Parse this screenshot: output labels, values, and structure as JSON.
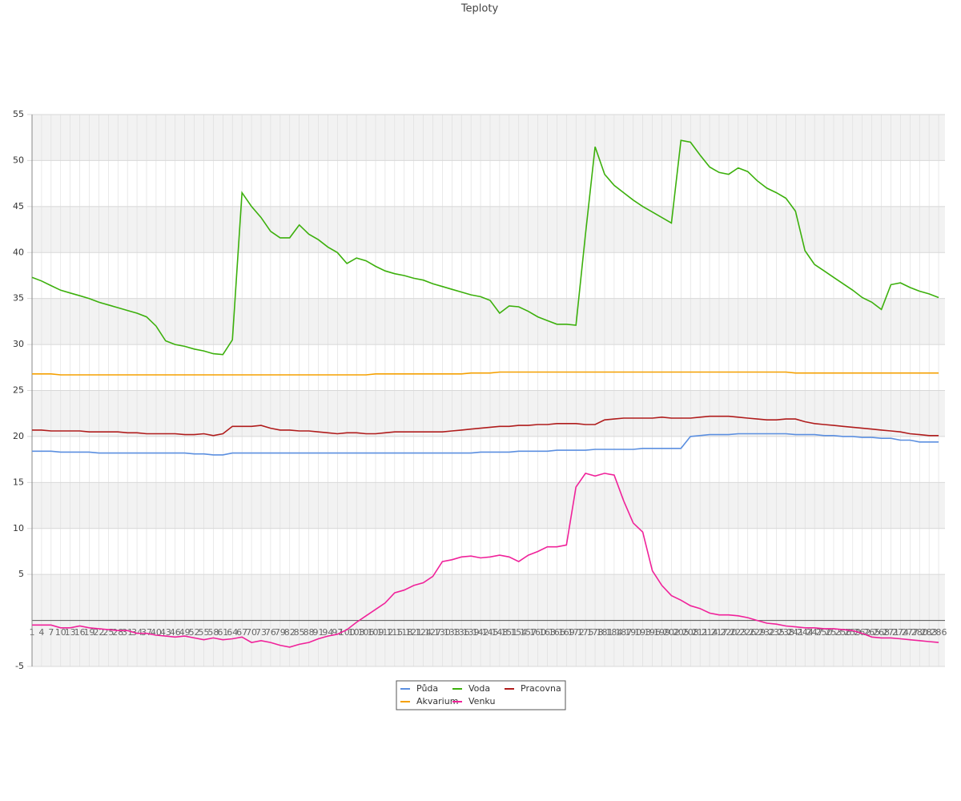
{
  "chart_data": {
    "type": "line",
    "title": "Teploty",
    "x": [
      1,
      4,
      7,
      10,
      13,
      16,
      19,
      22,
      25,
      28,
      31,
      34,
      37,
      40,
      43,
      46,
      49,
      52,
      55,
      58,
      61,
      64,
      67,
      70,
      73,
      76,
      79,
      82,
      85,
      88,
      91,
      94,
      97,
      100,
      103,
      106,
      109,
      112,
      115,
      118,
      121,
      124,
      127,
      130,
      133,
      136,
      139,
      142,
      145,
      148,
      151,
      154,
      157,
      160,
      163,
      166,
      169,
      172,
      175,
      178,
      181,
      184,
      187,
      190,
      193,
      196,
      199,
      202,
      205,
      208,
      211,
      214,
      217,
      220,
      223,
      226,
      229,
      232,
      235,
      238,
      241,
      244,
      247,
      250,
      253,
      256,
      259,
      262,
      265,
      268,
      271,
      274,
      277,
      280,
      283,
      286
    ],
    "xlim": [
      1,
      288
    ],
    "ylim": [
      -5,
      55
    ],
    "yticks": [
      -5,
      5,
      10,
      15,
      20,
      25,
      30,
      35,
      40,
      45,
      50,
      55
    ],
    "grid": true,
    "series": [
      {
        "name": "Půda",
        "color": "#5b8fe0",
        "values": [
          18.4,
          18.4,
          18.4,
          18.3,
          18.3,
          18.3,
          18.3,
          18.2,
          18.2,
          18.2,
          18.2,
          18.2,
          18.2,
          18.2,
          18.2,
          18.2,
          18.2,
          18.1,
          18.1,
          18.0,
          18.0,
          18.2,
          18.2,
          18.2,
          18.2,
          18.2,
          18.2,
          18.2,
          18.2,
          18.2,
          18.2,
          18.2,
          18.2,
          18.2,
          18.2,
          18.2,
          18.2,
          18.2,
          18.2,
          18.2,
          18.2,
          18.2,
          18.2,
          18.2,
          18.2,
          18.2,
          18.2,
          18.3,
          18.3,
          18.3,
          18.3,
          18.4,
          18.4,
          18.4,
          18.4,
          18.5,
          18.5,
          18.5,
          18.5,
          18.6,
          18.6,
          18.6,
          18.6,
          18.6,
          18.7,
          18.7,
          18.7,
          18.7,
          18.7,
          20.0,
          20.1,
          20.2,
          20.2,
          20.2,
          20.3,
          20.3,
          20.3,
          20.3,
          20.3,
          20.3,
          20.2,
          20.2,
          20.2,
          20.1,
          20.1,
          20.0,
          20.0,
          19.9,
          19.9,
          19.8,
          19.8,
          19.6,
          19.6,
          19.4,
          19.4,
          19.4
        ]
      },
      {
        "name": "Voda",
        "color": "#3cb00c",
        "values": [
          37.3,
          36.9,
          36.4,
          35.9,
          35.6,
          35.3,
          35.0,
          34.6,
          34.3,
          34.0,
          33.7,
          33.4,
          33.0,
          32.0,
          30.4,
          30.0,
          29.8,
          29.5,
          29.3,
          29.0,
          28.9,
          30.5,
          46.5,
          45.0,
          43.8,
          42.3,
          41.6,
          41.6,
          43.0,
          42.0,
          41.4,
          40.6,
          40.0,
          38.8,
          39.4,
          39.1,
          38.5,
          38.0,
          37.7,
          37.5,
          37.2,
          37.0,
          36.6,
          36.3,
          36.0,
          35.7,
          35.4,
          35.2,
          34.8,
          33.4,
          34.2,
          34.1,
          33.6,
          33.0,
          32.6,
          32.2,
          32.2,
          32.1,
          42,
          51.5,
          48.5,
          47.3,
          46.5,
          45.7,
          45.0,
          44.4,
          43.8,
          43.2,
          52.2,
          52.0,
          50.6,
          49.3,
          48.7,
          48.5,
          49.2,
          48.8,
          47.8,
          47.0,
          46.5,
          45.9,
          44.5,
          40.2,
          38.7,
          38.0,
          37.3,
          36.6,
          35.9,
          35.1,
          34.6,
          33.8,
          36.5,
          36.7,
          36.2,
          35.8,
          35.5,
          35.1
        ]
      },
      {
        "name": "Pracovna",
        "color": "#b01c1c",
        "values": [
          20.7,
          20.7,
          20.6,
          20.6,
          20.6,
          20.6,
          20.5,
          20.5,
          20.5,
          20.5,
          20.4,
          20.4,
          20.3,
          20.3,
          20.3,
          20.3,
          20.2,
          20.2,
          20.3,
          20.1,
          20.3,
          21.1,
          21.1,
          21.1,
          21.2,
          20.9,
          20.7,
          20.7,
          20.6,
          20.6,
          20.5,
          20.4,
          20.3,
          20.4,
          20.4,
          20.3,
          20.3,
          20.4,
          20.5,
          20.5,
          20.5,
          20.5,
          20.5,
          20.5,
          20.6,
          20.7,
          20.8,
          20.9,
          21.0,
          21.1,
          21.1,
          21.2,
          21.2,
          21.3,
          21.3,
          21.4,
          21.4,
          21.4,
          21.3,
          21.3,
          21.8,
          21.9,
          22.0,
          22.0,
          22.0,
          22.0,
          22.1,
          22.0,
          22.0,
          22.0,
          22.1,
          22.2,
          22.2,
          22.2,
          22.1,
          22.0,
          21.9,
          21.8,
          21.8,
          21.9,
          21.9,
          21.6,
          21.4,
          21.3,
          21.2,
          21.1,
          21.0,
          20.9,
          20.8,
          20.7,
          20.6,
          20.5,
          20.3,
          20.2,
          20.1,
          20.1
        ]
      },
      {
        "name": "Akvarium",
        "color": "#f5a000",
        "values": [
          26.8,
          26.8,
          26.8,
          26.7,
          26.7,
          26.7,
          26.7,
          26.7,
          26.7,
          26.7,
          26.7,
          26.7,
          26.7,
          26.7,
          26.7,
          26.7,
          26.7,
          26.7,
          26.7,
          26.7,
          26.7,
          26.7,
          26.7,
          26.7,
          26.7,
          26.7,
          26.7,
          26.7,
          26.7,
          26.7,
          26.7,
          26.7,
          26.7,
          26.7,
          26.7,
          26.7,
          26.8,
          26.8,
          26.8,
          26.8,
          26.8,
          26.8,
          26.8,
          26.8,
          26.8,
          26.8,
          26.9,
          26.9,
          26.9,
          27.0,
          27.0,
          27.0,
          27.0,
          27.0,
          27.0,
          27.0,
          27.0,
          27.0,
          27.0,
          27.0,
          27.0,
          27.0,
          27.0,
          27.0,
          27.0,
          27.0,
          27.0,
          27.0,
          27.0,
          27.0,
          27.0,
          27.0,
          27.0,
          27.0,
          27.0,
          27.0,
          27.0,
          27.0,
          27.0,
          27.0,
          26.9,
          26.9,
          26.9,
          26.9,
          26.9,
          26.9,
          26.9,
          26.9,
          26.9,
          26.9,
          26.9,
          26.9,
          26.9,
          26.9,
          26.9,
          26.9
        ]
      },
      {
        "name": "Venku",
        "color": "#f0229a",
        "values": [
          -0.5,
          -0.5,
          -0.5,
          -0.8,
          -0.8,
          -0.6,
          -0.8,
          -0.9,
          -1.0,
          -1.1,
          -1.1,
          -1.4,
          -1.4,
          -1.6,
          -1.7,
          -1.8,
          -1.7,
          -1.9,
          -2.1,
          -1.9,
          -2.1,
          -2.0,
          -1.8,
          -2.4,
          -2.2,
          -2.4,
          -2.7,
          -2.9,
          -2.6,
          -2.4,
          -2.0,
          -1.7,
          -1.5,
          -1.0,
          -0.2,
          0.5,
          1.2,
          1.9,
          3.0,
          3.3,
          3.8,
          4.1,
          4.8,
          6.4,
          6.6,
          6.9,
          7.0,
          6.8,
          6.9,
          7.1,
          6.9,
          6.4,
          7.1,
          7.5,
          8.0,
          8.0,
          8.2,
          14.5,
          16.0,
          15.7,
          16.0,
          15.8,
          13.0,
          10.6,
          9.6,
          5.4,
          3.8,
          2.7,
          2.2,
          1.6,
          1.3,
          0.8,
          0.6,
          0.6,
          0.5,
          0.3,
          0.0,
          -0.3,
          -0.4,
          -0.6,
          -0.7,
          -0.8,
          -0.8,
          -0.9,
          -0.9,
          -1.0,
          -1.1,
          -1.4,
          -1.8,
          -1.9,
          -1.9,
          -2.0,
          -2.1,
          -2.2,
          -2.3,
          -2.4
        ]
      }
    ]
  }
}
